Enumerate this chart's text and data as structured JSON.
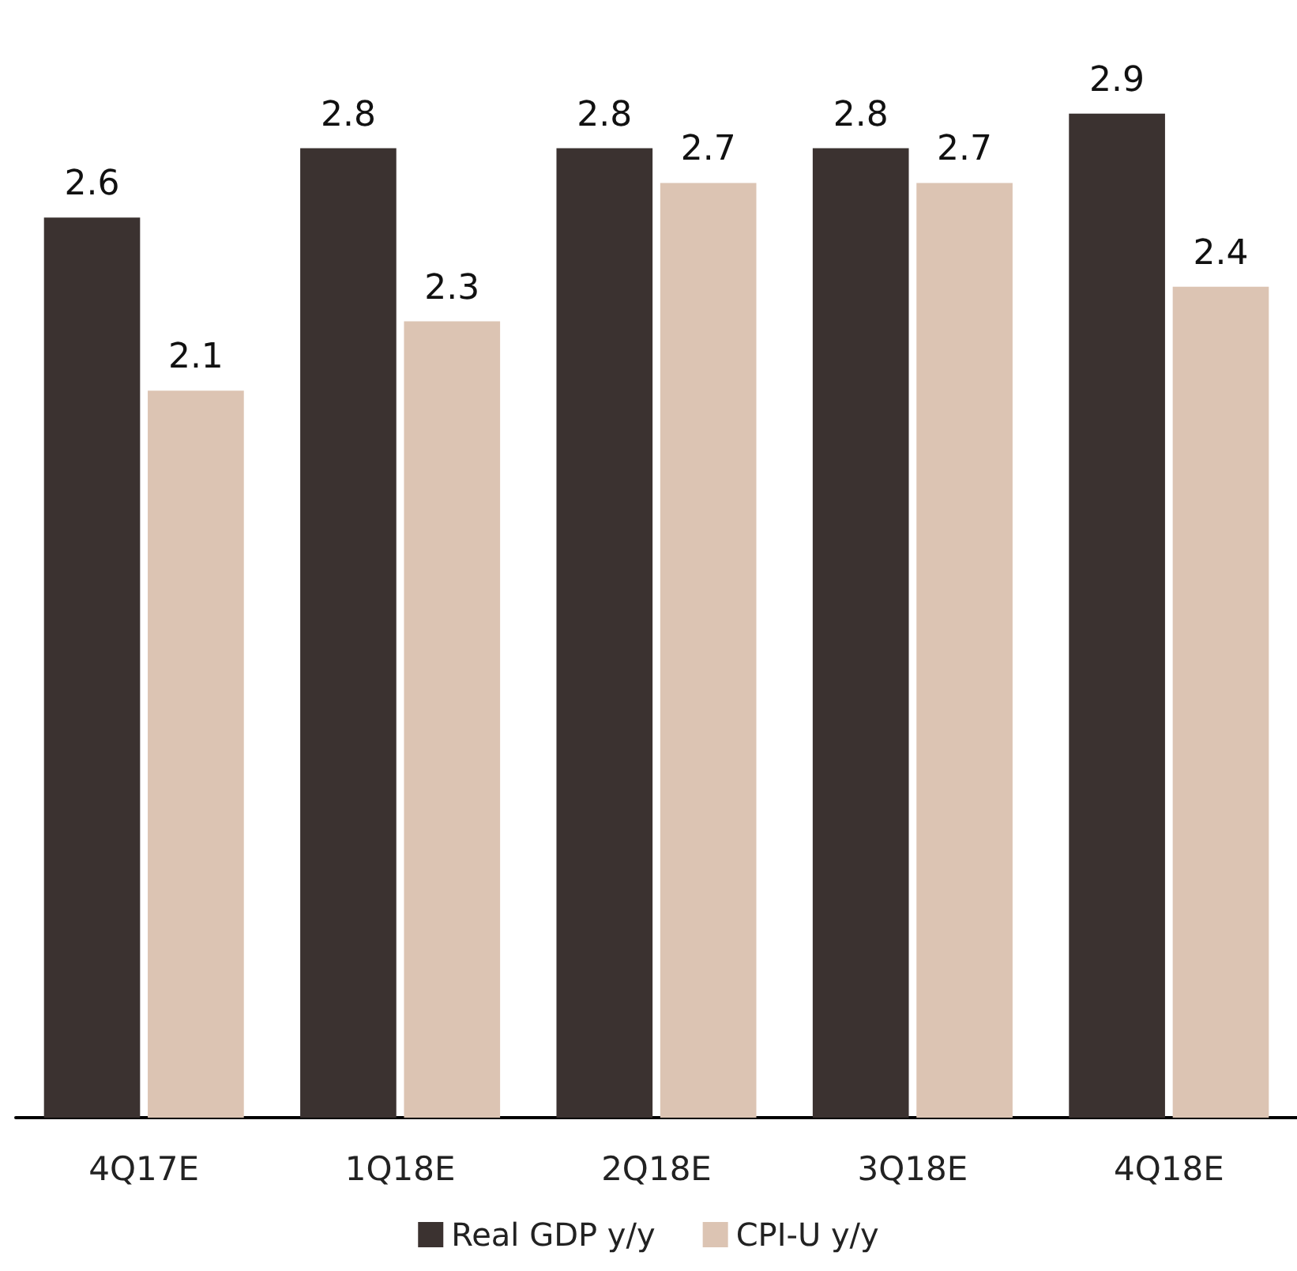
{
  "chart_data": {
    "type": "bar",
    "categories": [
      "4Q17E",
      "1Q18E",
      "2Q18E",
      "3Q18E",
      "4Q18E"
    ],
    "series": [
      {
        "name": "Real GDP y/y",
        "color": "#3b3230",
        "values": [
          2.6,
          2.8,
          2.8,
          2.8,
          2.9
        ]
      },
      {
        "name": "CPI-U y/y",
        "color": "#dcc4b3",
        "values": [
          2.1,
          2.3,
          2.7,
          2.7,
          2.4
        ]
      }
    ],
    "data_labels": true,
    "legend": "bottom",
    "grid": false
  }
}
